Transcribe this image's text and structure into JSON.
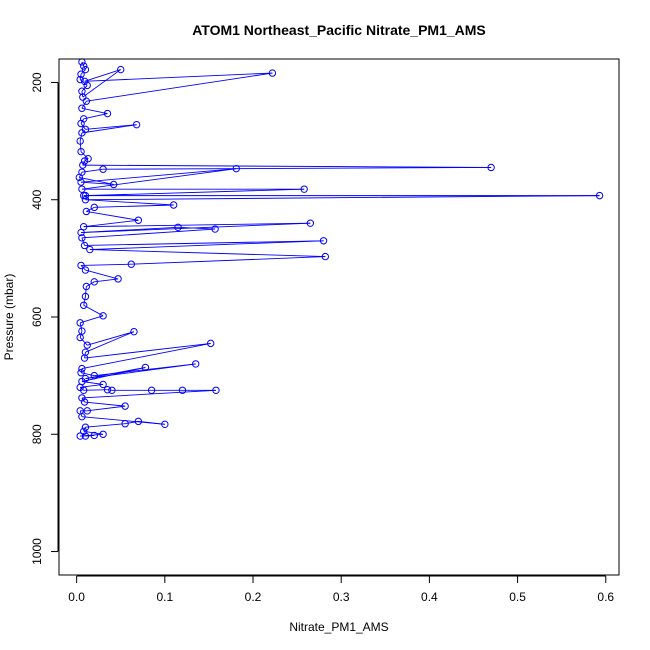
{
  "chart_data": {
    "type": "line",
    "title": "ATOM1 Northeast_Pacific Nitrate_PM1_AMS",
    "xlabel": "Nitrate_PM1_AMS",
    "ylabel": "Pressure (mbar)",
    "xlim": [
      -0.02,
      0.615
    ],
    "ylim": [
      1040,
      160
    ],
    "y_reversed": true,
    "x_ticks": [
      {
        "value": 0.0,
        "label": "0.0"
      },
      {
        "value": 0.1,
        "label": "0.1"
      },
      {
        "value": 0.2,
        "label": "0.2"
      },
      {
        "value": 0.3,
        "label": "0.3"
      },
      {
        "value": 0.4,
        "label": "0.4"
      },
      {
        "value": 0.5,
        "label": "0.5"
      },
      {
        "value": 0.6,
        "label": "0.6"
      }
    ],
    "y_ticks": [
      {
        "value": 200,
        "label": "200"
      },
      {
        "value": 400,
        "label": "400"
      },
      {
        "value": 600,
        "label": "600"
      },
      {
        "value": 800,
        "label": "800"
      },
      {
        "value": 1000,
        "label": "1000"
      }
    ],
    "grid": false,
    "color": "#0000ff",
    "marker": "open-circle",
    "series": [
      {
        "x": [
          0.006,
          0.008,
          0.01,
          0.005,
          0.004,
          0.012,
          0.006,
          0.007,
          0.05,
          0.009,
          0.222,
          0.011,
          0.006,
          0.035,
          0.008,
          0.005,
          0.01,
          0.068,
          0.006,
          0.004,
          0.005,
          0.013,
          0.009,
          0.007,
          0.47,
          0.03,
          0.006,
          0.003,
          0.042,
          0.005,
          0.181,
          0.006,
          0.258,
          0.01,
          0.008,
          0.593,
          0.01,
          0.11,
          0.02,
          0.011,
          0.07,
          0.008,
          0.265,
          0.005,
          0.115,
          0.157,
          0.006,
          0.009,
          0.28,
          0.015,
          0.282,
          0.062,
          0.005,
          0.01,
          0.047,
          0.02,
          0.011,
          0.01,
          0.008,
          0.03,
          0.004,
          0.006,
          0.004,
          0.012,
          0.065,
          0.01,
          0.009,
          0.152,
          0.006,
          0.005,
          0.02,
          0.135,
          0.01,
          0.078,
          0.006,
          0.03,
          0.004,
          0.008,
          0.035,
          0.04,
          0.085,
          0.12,
          0.158,
          0.006,
          0.009,
          0.055,
          0.012,
          0.004,
          0.006,
          0.1,
          0.07,
          0.055,
          0.01,
          0.008,
          0.03,
          0.004,
          0.02,
          0.01
        ],
        "y": [
          165,
          172,
          178,
          186,
          195,
          205,
          215,
          225,
          178,
          198,
          184,
          232,
          244,
          253,
          262,
          270,
          280,
          272,
          286,
          300,
          318,
          330,
          334,
          341,
          345,
          348,
          353,
          362,
          374,
          370,
          347,
          382,
          382,
          393,
          393,
          393,
          400,
          409,
          413,
          420,
          435,
          446,
          440,
          456,
          447,
          450,
          465,
          478,
          470,
          485,
          497,
          510,
          512,
          520,
          535,
          540,
          548,
          565,
          580,
          598,
          610,
          624,
          635,
          648,
          625,
          660,
          670,
          645,
          688,
          695,
          700,
          680,
          705,
          686,
          710,
          715,
          720,
          725,
          724,
          725,
          725,
          725,
          725,
          738,
          745,
          752,
          760,
          760,
          770,
          783,
          778,
          782,
          788,
          795,
          800,
          803,
          802,
          803
        ]
      }
    ]
  }
}
